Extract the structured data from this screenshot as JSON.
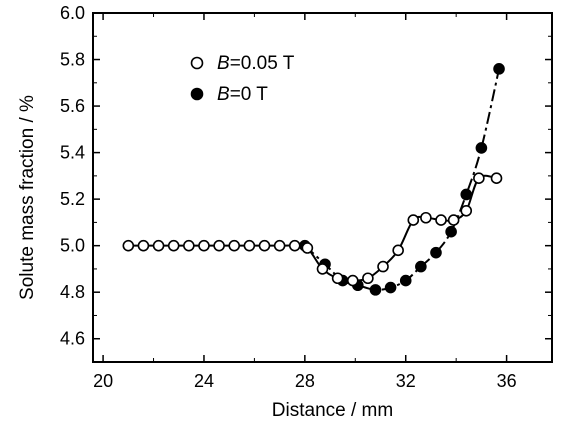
{
  "chart_data": {
    "type": "line",
    "xlabel": "Distance / mm",
    "ylabel": "Solute mass fraction / %",
    "xlim": [
      19.6,
      37.8
    ],
    "ylim": [
      4.5,
      6.0
    ],
    "xticks": [
      20,
      24,
      28,
      32,
      36
    ],
    "yticks": [
      4.6,
      4.8,
      5.0,
      5.2,
      5.4,
      5.6,
      5.8,
      6.0
    ],
    "xtick_labels": [
      "20",
      "24",
      "28",
      "32",
      "36"
    ],
    "ytick_labels": [
      "4.6",
      "4.8",
      "5.0",
      "5.2",
      "5.4",
      "5.6",
      "5.8",
      "6.0"
    ],
    "grid": false,
    "legend_position": "top-left",
    "series": [
      {
        "name": "B=0.05 T",
        "legend_var": "B",
        "legend_rest": "=0.05 T",
        "marker": "open-circle",
        "line": "solid",
        "x": [
          21.0,
          21.6,
          22.2,
          22.8,
          23.4,
          24.0,
          24.6,
          25.2,
          25.8,
          26.4,
          27.0,
          27.6,
          28.1,
          28.7,
          29.3,
          29.9,
          30.5,
          31.1,
          31.7,
          32.3,
          32.8,
          33.4,
          33.9,
          34.4,
          34.9,
          35.6
        ],
        "y": [
          5.0,
          5.0,
          5.0,
          5.0,
          5.0,
          5.0,
          5.0,
          5.0,
          5.0,
          5.0,
          5.0,
          5.0,
          4.99,
          4.9,
          4.86,
          4.85,
          4.86,
          4.91,
          4.98,
          5.11,
          5.12,
          5.11,
          5.11,
          5.15,
          5.29,
          5.29
        ]
      },
      {
        "name": "B=0 T",
        "legend_var": "B",
        "legend_rest": "=0 T",
        "marker": "filled-circle",
        "line": "dash-dot",
        "x": [
          28.0,
          28.8,
          29.5,
          30.1,
          30.8,
          31.4,
          32.0,
          32.6,
          33.2,
          33.8,
          34.4,
          35.0,
          35.7
        ],
        "y": [
          5.0,
          4.92,
          4.85,
          4.83,
          4.81,
          4.82,
          4.85,
          4.91,
          4.97,
          5.06,
          5.22,
          5.42,
          5.76
        ]
      }
    ]
  }
}
